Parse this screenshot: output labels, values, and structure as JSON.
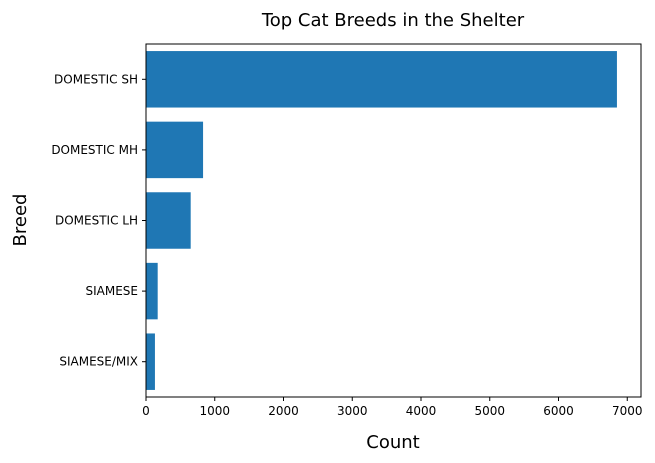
{
  "chart_data": {
    "type": "bar",
    "orientation": "horizontal",
    "title": "Top Cat Breeds in the Shelter",
    "xlabel": "Count",
    "ylabel": "Breed",
    "categories": [
      "DOMESTIC SH",
      "DOMESTIC MH",
      "DOMESTIC LH",
      "SIAMESE",
      "SIAMESE/MIX"
    ],
    "values": [
      6850,
      830,
      650,
      170,
      130
    ],
    "xlim": [
      0,
      7200
    ],
    "xticks": [
      0,
      1000,
      2000,
      3000,
      4000,
      5000,
      6000,
      7000
    ],
    "grid": false,
    "bar_color": "#1f77b4"
  }
}
